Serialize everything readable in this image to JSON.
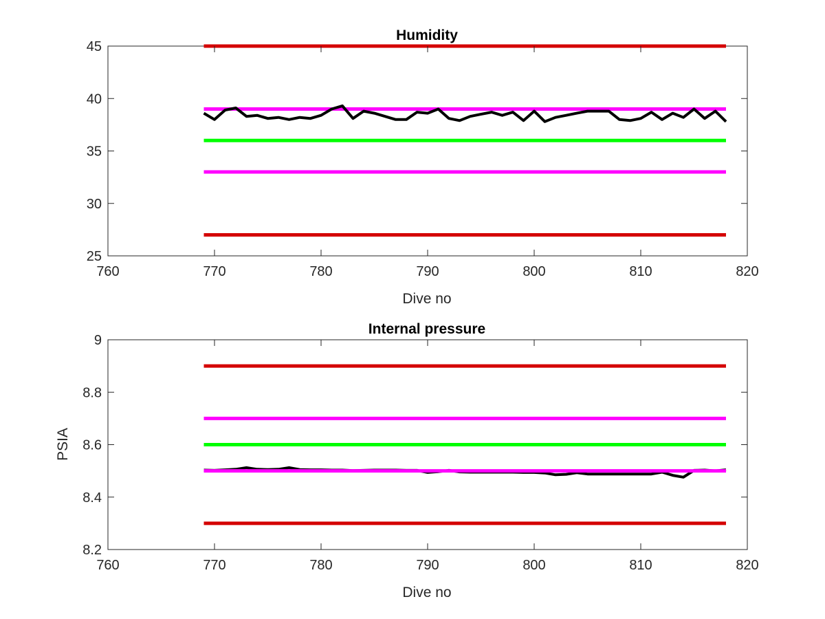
{
  "chart_data": [
    {
      "type": "line",
      "title": "Humidity",
      "xlabel": "Dive no",
      "ylabel": "",
      "xlim": [
        760,
        820
      ],
      "ylim": [
        25,
        45
      ],
      "xticks": [
        "760",
        "770",
        "780",
        "790",
        "800",
        "810",
        "820"
      ],
      "yticks": [
        "25",
        "30",
        "35",
        "40",
        "45"
      ],
      "grid": false,
      "thresholds": [
        {
          "y": 45,
          "x": [
            769,
            818
          ],
          "color": "#d40000"
        },
        {
          "y": 39,
          "x": [
            769,
            818
          ],
          "color": "#ff00ff"
        },
        {
          "y": 36,
          "x": [
            769,
            818
          ],
          "color": "#00ff00"
        },
        {
          "y": 33,
          "x": [
            769,
            818
          ],
          "color": "#ff00ff"
        },
        {
          "y": 27,
          "x": [
            769,
            818
          ],
          "color": "#d40000"
        }
      ],
      "series": [
        {
          "color": "#000000",
          "x": [
            769,
            770,
            771,
            772,
            773,
            774,
            775,
            776,
            777,
            778,
            779,
            780,
            781,
            782,
            783,
            784,
            785,
            786,
            787,
            788,
            789,
            790,
            791,
            792,
            793,
            794,
            795,
            796,
            797,
            798,
            799,
            800,
            801,
            802,
            803,
            804,
            805,
            806,
            807,
            808,
            809,
            810,
            811,
            812,
            813,
            814,
            815,
            816,
            817,
            818
          ],
          "y": [
            38.6,
            38.0,
            38.9,
            39.1,
            38.3,
            38.4,
            38.1,
            38.2,
            38.0,
            38.2,
            38.1,
            38.4,
            39.0,
            39.3,
            38.1,
            38.8,
            38.6,
            38.3,
            38.0,
            38.0,
            38.7,
            38.6,
            39.0,
            38.1,
            37.9,
            38.3,
            38.5,
            38.7,
            38.4,
            38.7,
            37.9,
            38.8,
            37.8,
            38.2,
            38.4,
            38.6,
            38.8,
            38.8,
            38.8,
            38.0,
            37.9,
            38.1,
            38.7,
            38.0,
            38.6,
            38.2,
            39.0,
            38.1,
            38.8,
            37.8
          ]
        }
      ]
    },
    {
      "type": "line",
      "title": "Internal pressure",
      "xlabel": "Dive no",
      "ylabel": "PSIA",
      "xlim": [
        760,
        820
      ],
      "ylim": [
        8.2,
        9
      ],
      "xticks": [
        "760",
        "770",
        "780",
        "790",
        "800",
        "810",
        "820"
      ],
      "yticks": [
        "8.2",
        "8.4",
        "8.6",
        "8.8",
        "9"
      ],
      "grid": false,
      "thresholds": [
        {
          "y": 8.9,
          "x": [
            769,
            818
          ],
          "color": "#d40000"
        },
        {
          "y": 8.7,
          "x": [
            769,
            818
          ],
          "color": "#ff00ff"
        },
        {
          "y": 8.6,
          "x": [
            769,
            818
          ],
          "color": "#00ff00"
        },
        {
          "y": 8.3,
          "x": [
            769,
            818
          ],
          "color": "#d40000"
        }
      ],
      "series": [
        {
          "color": "#000000",
          "x": [
            769,
            770,
            771,
            772,
            773,
            774,
            775,
            776,
            777,
            778,
            779,
            780,
            781,
            782,
            783,
            784,
            785,
            786,
            787,
            788,
            789,
            790,
            791,
            792,
            793,
            794,
            795,
            796,
            797,
            798,
            799,
            800,
            801,
            802,
            803,
            804,
            805,
            806,
            807,
            808,
            809,
            810,
            811,
            812,
            813,
            814,
            815,
            816,
            817,
            818
          ],
          "y": [
            8.503,
            8.502,
            8.504,
            8.506,
            8.512,
            8.506,
            8.505,
            8.506,
            8.512,
            8.505,
            8.504,
            8.504,
            8.503,
            8.503,
            8.501,
            8.502,
            8.503,
            8.503,
            8.503,
            8.502,
            8.502,
            8.494,
            8.497,
            8.502,
            8.496,
            8.495,
            8.495,
            8.495,
            8.495,
            8.495,
            8.494,
            8.494,
            8.492,
            8.485,
            8.487,
            8.493,
            8.488,
            8.488,
            8.488,
            8.488,
            8.488,
            8.488,
            8.488,
            8.495,
            8.483,
            8.476,
            8.502,
            8.503,
            8.5,
            8.504
          ]
        },
        {
          "color": "#ff00ff",
          "x": [
            769,
            818
          ],
          "y": [
            8.5,
            8.5
          ]
        }
      ]
    }
  ]
}
